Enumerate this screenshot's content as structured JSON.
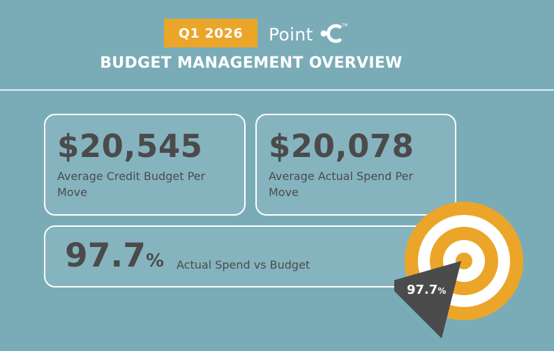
{
  "header": {
    "quarter": "Q1 2026",
    "brand_name": "Point",
    "brand_logo_icon": "point-c-logo-icon",
    "title": "BUDGET MANAGEMENT OVERVIEW"
  },
  "stats": {
    "credit_budget_value": "$20,545",
    "credit_budget_label": "Average Credit Budget Per Move",
    "actual_spend_value": "$20,078",
    "actual_spend_label": "Average Actual Spend Per Move",
    "ratio_value": "97.7",
    "ratio_unit": "%",
    "ratio_label": "Actual Spend vs Budget"
  },
  "target": {
    "icon": "target-icon",
    "value": "97.7",
    "unit": "%"
  },
  "colors": {
    "background": "#7aacb8",
    "accent": "#eba528",
    "text": "#4b4b4b",
    "pointer": "#4b4b4b"
  }
}
